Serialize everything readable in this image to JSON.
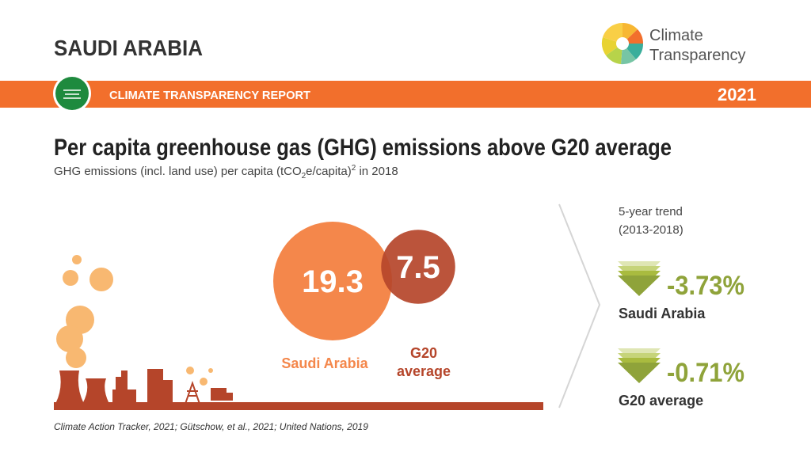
{
  "header": {
    "country": "SAUDI ARABIA",
    "logo": [
      "Climate",
      "Transparency"
    ],
    "banner": "CLIMATE TRANSPARENCY REPORT",
    "year": "2021"
  },
  "title": "Per capita greenhouse gas (GHG) emissions above G20 average",
  "subtitle": [
    "GHG emissions (incl. land use) per capita (tCO",
    "2",
    "e/capita)",
    "2",
    " in 2018"
  ],
  "bubbles": [
    {
      "label": [
        "Saudi Arabia"
      ],
      "value": 19.3,
      "color": "#f4874b"
    },
    {
      "label": [
        "G20",
        "average"
      ],
      "value": 7.5,
      "color": "#b5452a"
    }
  ],
  "trend": {
    "title": [
      "5-year trend",
      "(2013-2018)"
    ],
    "items": [
      {
        "change": "-3.73%",
        "label": "Saudi Arabia"
      },
      {
        "change": "-0.71%",
        "label": "G20 average"
      }
    ]
  },
  "source": "Climate Action Tracker, 2021; Gütschow, et al., 2021; United Nations, 2019"
}
